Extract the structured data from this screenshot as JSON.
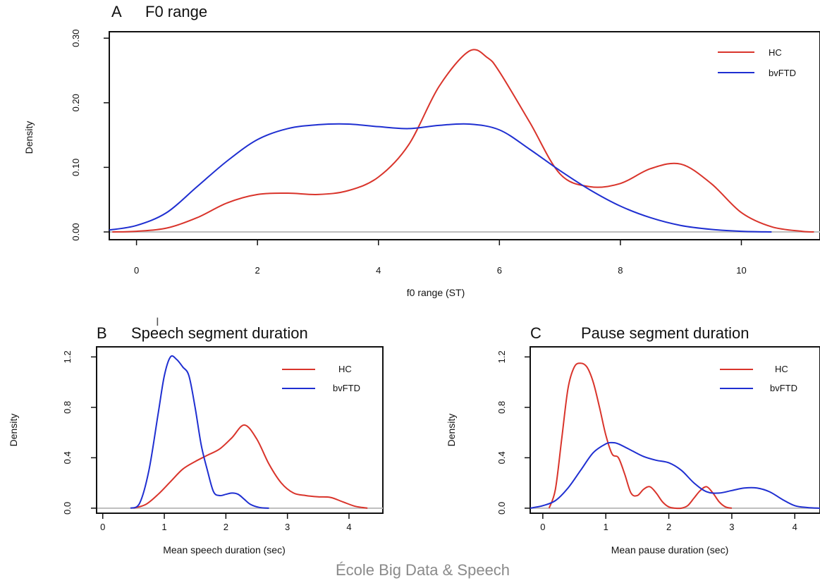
{
  "colors": {
    "HC": "#d9342b",
    "bvFTD": "#1f2fd1",
    "baseline": "#bdbdbd",
    "axis": "#111111"
  },
  "footer": {
    "watermark": "École Big Data & Speech"
  },
  "chart_data": [
    {
      "id": "A",
      "type": "line",
      "panel_letter": "A",
      "title": "F0 range",
      "xlabel": "f0 range (ST)",
      "ylabel": "Density",
      "xlim": [
        -0.45,
        11.3
      ],
      "ylim": [
        -0.012,
        0.31
      ],
      "xticks": [
        0,
        2,
        4,
        6,
        8,
        10
      ],
      "yticks": [
        0.0,
        0.1,
        0.2,
        0.3
      ],
      "ytick_labels": [
        "0.00",
        "0.10",
        "0.20",
        "0.30"
      ],
      "legend": {
        "position": "top-right",
        "entries": [
          "HC",
          "bvFTD"
        ]
      },
      "series": [
        {
          "name": "HC",
          "x": [
            -0.4,
            0,
            0.5,
            1,
            1.5,
            2,
            2.5,
            3,
            3.5,
            4,
            4.5,
            5,
            5.5,
            5.8,
            6,
            6.5,
            7,
            7.5,
            8,
            8.5,
            9,
            9.5,
            10,
            10.5,
            11,
            11.2
          ],
          "y": [
            0.0,
            0.001,
            0.006,
            0.022,
            0.045,
            0.058,
            0.06,
            0.058,
            0.064,
            0.085,
            0.135,
            0.225,
            0.28,
            0.27,
            0.248,
            0.17,
            0.09,
            0.07,
            0.075,
            0.098,
            0.105,
            0.075,
            0.03,
            0.008,
            0.001,
            0.0
          ]
        },
        {
          "name": "bvFTD",
          "x": [
            -0.45,
            0,
            0.5,
            1,
            1.5,
            2,
            2.5,
            3,
            3.5,
            4,
            4.5,
            5,
            5.5,
            6,
            6.5,
            7,
            7.5,
            8,
            8.5,
            9,
            9.5,
            10,
            10.5
          ],
          "y": [
            0.003,
            0.01,
            0.03,
            0.07,
            0.11,
            0.143,
            0.16,
            0.166,
            0.167,
            0.163,
            0.16,
            0.165,
            0.167,
            0.158,
            0.128,
            0.095,
            0.065,
            0.04,
            0.022,
            0.01,
            0.004,
            0.001,
            0.0
          ]
        }
      ]
    },
    {
      "id": "B",
      "type": "line",
      "panel_letter": "B",
      "title": "Speech segment duration",
      "xlabel": "Mean speech duration (sec)",
      "ylabel": "Density",
      "xlim": [
        -0.1,
        4.55
      ],
      "ylim": [
        -0.04,
        1.28
      ],
      "xticks": [
        0,
        1,
        2,
        3,
        4
      ],
      "yticks": [
        0.0,
        0.4,
        0.8,
        1.2
      ],
      "ytick_labels": [
        "0.0",
        "0.4",
        "0.8",
        "1.2"
      ],
      "legend": {
        "position": "top-right",
        "entries": [
          "HC",
          "bvFTD"
        ]
      },
      "series": [
        {
          "name": "HC",
          "x": [
            0.5,
            0.7,
            0.9,
            1.1,
            1.3,
            1.5,
            1.7,
            1.9,
            2.1,
            2.3,
            2.5,
            2.7,
            2.9,
            3.1,
            3.3,
            3.5,
            3.7,
            3.9,
            4.1,
            4.3
          ],
          "y": [
            0.0,
            0.03,
            0.11,
            0.21,
            0.31,
            0.37,
            0.42,
            0.47,
            0.56,
            0.66,
            0.55,
            0.35,
            0.2,
            0.12,
            0.1,
            0.09,
            0.085,
            0.05,
            0.015,
            0.0
          ]
        },
        {
          "name": "bvFTD",
          "x": [
            0.45,
            0.6,
            0.75,
            0.9,
            1.0,
            1.1,
            1.2,
            1.3,
            1.4,
            1.5,
            1.6,
            1.7,
            1.8,
            1.9,
            2.0,
            2.1,
            2.2,
            2.3,
            2.4,
            2.55,
            2.7
          ],
          "y": [
            0.0,
            0.04,
            0.3,
            0.75,
            1.05,
            1.2,
            1.18,
            1.12,
            1.05,
            0.8,
            0.5,
            0.3,
            0.13,
            0.1,
            0.11,
            0.12,
            0.11,
            0.07,
            0.03,
            0.005,
            0.0
          ]
        }
      ]
    },
    {
      "id": "C",
      "type": "line",
      "panel_letter": "C",
      "title": "Pause segment duration",
      "xlabel": "Mean pause duration (sec)",
      "ylabel": "Density",
      "xlim": [
        -0.2,
        4.4
      ],
      "ylim": [
        -0.04,
        1.28
      ],
      "xticks": [
        0,
        1,
        2,
        3,
        4
      ],
      "yticks": [
        0.0,
        0.4,
        0.8,
        1.2
      ],
      "ytick_labels": [
        "0.0",
        "0.4",
        "0.8",
        "1.2"
      ],
      "legend": {
        "position": "top-right",
        "entries": [
          "HC",
          "bvFTD"
        ]
      },
      "series": [
        {
          "name": "HC",
          "x": [
            0.1,
            0.2,
            0.3,
            0.4,
            0.5,
            0.6,
            0.7,
            0.8,
            0.9,
            1.0,
            1.1,
            1.2,
            1.3,
            1.4,
            1.5,
            1.6,
            1.7,
            1.8,
            1.9,
            2.0,
            2.1,
            2.2,
            2.3,
            2.4,
            2.5,
            2.6,
            2.7,
            2.8,
            2.9,
            3.0
          ],
          "y": [
            0.0,
            0.15,
            0.55,
            0.95,
            1.12,
            1.15,
            1.12,
            1.0,
            0.8,
            0.58,
            0.43,
            0.4,
            0.27,
            0.12,
            0.1,
            0.15,
            0.17,
            0.12,
            0.05,
            0.01,
            0.0,
            0.0,
            0.02,
            0.08,
            0.14,
            0.17,
            0.12,
            0.05,
            0.01,
            0.0
          ]
        },
        {
          "name": "bvFTD",
          "x": [
            -0.2,
            0,
            0.2,
            0.4,
            0.6,
            0.8,
            1.0,
            1.1,
            1.2,
            1.4,
            1.6,
            1.8,
            2.0,
            2.2,
            2.4,
            2.6,
            2.8,
            3.0,
            3.2,
            3.4,
            3.6,
            3.8,
            4.0,
            4.2,
            4.4
          ],
          "y": [
            0.0,
            0.02,
            0.06,
            0.16,
            0.3,
            0.44,
            0.51,
            0.52,
            0.51,
            0.46,
            0.41,
            0.38,
            0.36,
            0.3,
            0.2,
            0.13,
            0.12,
            0.14,
            0.16,
            0.16,
            0.13,
            0.07,
            0.02,
            0.005,
            0.0
          ]
        }
      ]
    }
  ]
}
